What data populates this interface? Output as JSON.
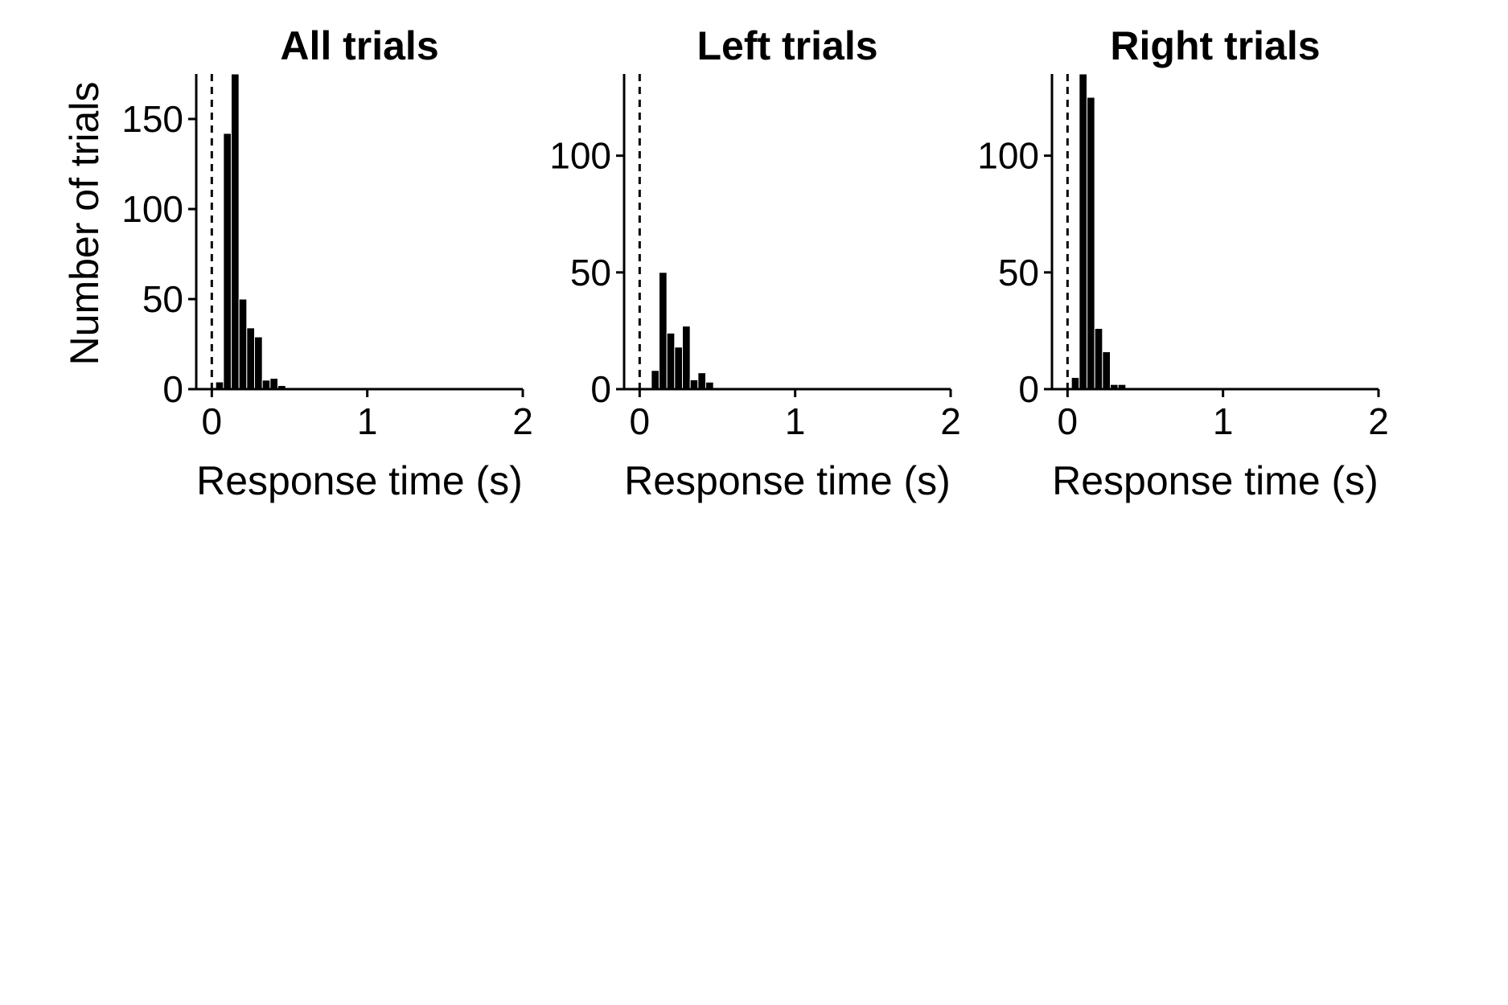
{
  "chart_data": [
    {
      "type": "bar",
      "title": "All trials",
      "xlabel": "Response time (s)",
      "ylabel": "Number of trials",
      "xlim": [
        -0.1,
        2.0
      ],
      "ylim": [
        0,
        175
      ],
      "xticks": [
        0,
        1,
        2
      ],
      "yticks": [
        0,
        50,
        100,
        150
      ],
      "vline_x": 0,
      "grid": false,
      "bin_width": 0.05,
      "x": [
        0.05,
        0.1,
        0.15,
        0.2,
        0.25,
        0.3,
        0.35,
        0.4,
        0.45,
        0.5,
        0.55,
        0.6,
        0.65,
        0.7,
        0.75,
        0.8,
        0.85,
        0.9,
        0.95,
        1.0,
        1.05,
        1.1,
        1.15,
        1.2,
        1.25,
        1.3,
        1.35,
        1.4,
        1.45,
        1.5,
        1.55,
        1.6,
        1.65,
        1.7,
        1.75,
        1.8,
        1.85,
        1.9,
        1.95
      ],
      "values": [
        4,
        142,
        175,
        50,
        34,
        29,
        5,
        6,
        2,
        0.4,
        0.4,
        0.4,
        0.4,
        0.4,
        0.6,
        0.4,
        0.4,
        0.4,
        0.4,
        0.4,
        0.4,
        0.4,
        0.4,
        0.4,
        0.4,
        0.4,
        0.4,
        0.4,
        0.4,
        0.4,
        0.4,
        0.4,
        0.4,
        0.6,
        0.4,
        0.4,
        0.4,
        0.4,
        0.4
      ]
    },
    {
      "type": "bar",
      "title": "Left trials",
      "xlabel": "Response time (s)",
      "ylabel": "",
      "xlim": [
        -0.1,
        2.0
      ],
      "ylim": [
        0,
        135
      ],
      "xticks": [
        0,
        1,
        2
      ],
      "yticks": [
        0,
        50,
        100
      ],
      "vline_x": 0,
      "grid": false,
      "bin_width": 0.05,
      "x": [
        0.1,
        0.15,
        0.2,
        0.25,
        0.3,
        0.35,
        0.4,
        0.45,
        0.5,
        0.55,
        0.6,
        0.65,
        0.7,
        0.75,
        0.8,
        0.85,
        0.9,
        0.95,
        1.0,
        1.05,
        1.1,
        1.15,
        1.2,
        1.25,
        1.3,
        1.35,
        1.4,
        1.45,
        1.5,
        1.55,
        1.6,
        1.65,
        1.7,
        1.75,
        1.8,
        1.85,
        1.9,
        1.95
      ],
      "values": [
        8,
        50,
        24,
        18,
        27,
        4,
        7,
        3,
        0.4,
        0.4,
        0.4,
        0.4,
        0.6,
        0.4,
        0.4,
        0.4,
        0.4,
        0.4,
        0.4,
        0.4,
        0.4,
        0.4,
        0.4,
        0.4,
        0.4,
        0.4,
        0.4,
        0.4,
        0.4,
        0.4,
        0.4,
        0.4,
        0.4,
        0.4,
        0.4,
        0.4,
        0.4,
        0.4
      ]
    },
    {
      "type": "bar",
      "title": "Right trials",
      "xlabel": "Response time (s)",
      "ylabel": "",
      "xlim": [
        -0.1,
        2.0
      ],
      "ylim": [
        0,
        135
      ],
      "xticks": [
        0,
        1,
        2
      ],
      "yticks": [
        0,
        50,
        100
      ],
      "vline_x": 0,
      "grid": false,
      "bin_width": 0.05,
      "x": [
        0.05,
        0.1,
        0.15,
        0.2,
        0.25,
        0.3,
        0.35,
        0.4,
        0.45,
        0.5,
        0.55,
        0.6,
        0.65,
        0.7,
        0.75,
        0.8,
        0.85,
        0.9,
        0.95,
        1.0,
        1.05,
        1.1,
        1.15,
        1.2,
        1.25,
        1.3,
        1.35,
        1.4,
        1.45,
        1.5,
        1.55,
        1.6,
        1.65,
        1.7,
        1.75,
        1.8,
        1.85,
        1.9,
        1.95
      ],
      "values": [
        5,
        135,
        125,
        26,
        16,
        2,
        2,
        0.4,
        0.4,
        0.6,
        0.4,
        0.4,
        0.4,
        0.4,
        0.4,
        0.4,
        0.4,
        0.4,
        0.4,
        0.4,
        0.4,
        0.4,
        0.4,
        0.4,
        0.4,
        0.4,
        0.4,
        0.4,
        0.4,
        0.4,
        0.4,
        0.4,
        0.4,
        0.6,
        0.4,
        0.4,
        0.4,
        0.4,
        0.4
      ]
    }
  ],
  "colors": {
    "bar_fill": "#000000",
    "bar_edge": "#ffffff",
    "axis": "#000000",
    "background": "#ffffff"
  }
}
